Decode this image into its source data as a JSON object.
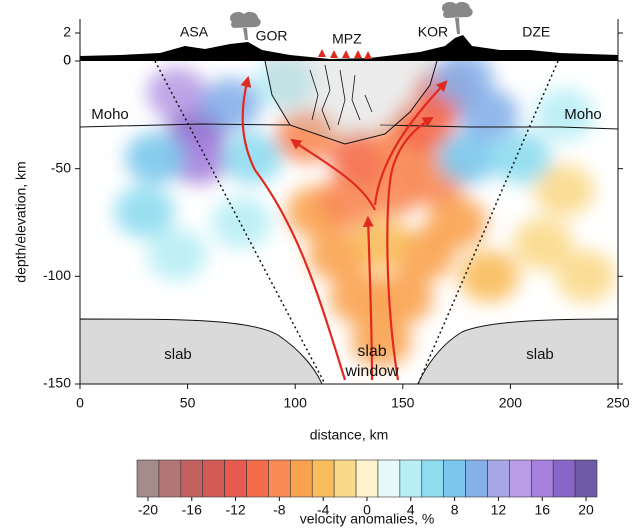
{
  "chart_data": {
    "type": "tomography",
    "xlabel": "distance, km",
    "ylabel": "depth/elevation, km",
    "xlim": [
      0,
      250
    ],
    "ylim": [
      -150,
      0
    ],
    "xticks": [
      0,
      50,
      100,
      150,
      200,
      250
    ],
    "yticks": [
      -150,
      -100,
      -50,
      0
    ],
    "elevation_lim": [
      0,
      3
    ],
    "elevation_ticks": [
      0,
      2
    ],
    "sites": [
      {
        "label": "ASA",
        "x": 53
      },
      {
        "label": "GOR",
        "x": 89
      },
      {
        "label": "MPZ",
        "x": 124
      },
      {
        "label": "KOR",
        "x": 164
      },
      {
        "label": "DZE",
        "x": 212
      }
    ],
    "labels": [
      "Moho",
      "Moho",
      "slab",
      "slab",
      "slab",
      "window"
    ],
    "anomalies": [
      {
        "x": 140,
        "y": -130,
        "value": -6
      },
      {
        "x": 130,
        "y": -110,
        "value": -6
      },
      {
        "x": 150,
        "y": -110,
        "value": -6
      },
      {
        "x": 120,
        "y": -90,
        "value": -6
      },
      {
        "x": 160,
        "y": -90,
        "value": -6
      },
      {
        "x": 140,
        "y": -85,
        "value": -4
      },
      {
        "x": 175,
        "y": -75,
        "value": -6
      },
      {
        "x": 110,
        "y": -70,
        "value": -6
      },
      {
        "x": 125,
        "y": -65,
        "value": -8
      },
      {
        "x": 145,
        "y": -60,
        "value": -8
      },
      {
        "x": 165,
        "y": -55,
        "value": -8
      },
      {
        "x": 130,
        "y": -45,
        "value": -10
      },
      {
        "x": 150,
        "y": -40,
        "value": -8
      },
      {
        "x": 170,
        "y": -15,
        "value": -12
      },
      {
        "x": 160,
        "y": -30,
        "value": -10
      },
      {
        "x": 105,
        "y": -35,
        "value": -8
      },
      {
        "x": 190,
        "y": -100,
        "value": -4
      },
      {
        "x": 215,
        "y": -85,
        "value": -2
      },
      {
        "x": 235,
        "y": -100,
        "value": -2
      },
      {
        "x": 225,
        "y": -60,
        "value": -2
      },
      {
        "x": 55,
        "y": -30,
        "value": 18
      },
      {
        "x": 55,
        "y": -45,
        "value": 16
      },
      {
        "x": 45,
        "y": -15,
        "value": 14
      },
      {
        "x": 70,
        "y": -20,
        "value": 10
      },
      {
        "x": 80,
        "y": -45,
        "value": 6
      },
      {
        "x": 95,
        "y": -10,
        "value": 4
      },
      {
        "x": 35,
        "y": -45,
        "value": 8
      },
      {
        "x": 30,
        "y": -70,
        "value": 6
      },
      {
        "x": 45,
        "y": -90,
        "value": 4
      },
      {
        "x": 75,
        "y": -75,
        "value": 4
      },
      {
        "x": 180,
        "y": -45,
        "value": 8
      },
      {
        "x": 190,
        "y": -25,
        "value": 10
      },
      {
        "x": 205,
        "y": -45,
        "value": 6
      },
      {
        "x": 178,
        "y": -8,
        "value": 10
      },
      {
        "x": 225,
        "y": -25,
        "value": 4
      }
    ],
    "colorbar": {
      "label": "velocity anomalies, %",
      "ticks": [
        -20,
        -16,
        -12,
        -8,
        -4,
        0,
        4,
        8,
        12,
        16,
        20
      ],
      "bins": [
        -21,
        -19,
        -17,
        -15,
        -13,
        -11,
        -9,
        -7,
        -5,
        -3,
        -1,
        1,
        3,
        5,
        7,
        9,
        11,
        13,
        15,
        17,
        19,
        21
      ],
      "colors": [
        "#a48c8a",
        "#b27676",
        "#c2615f",
        "#d45a57",
        "#e75a4f",
        "#f46c4a",
        "#f88a55",
        "#f9a24f",
        "#f9bd5b",
        "#fbd98b",
        "#fdf3cc",
        "#e6f8f8",
        "#b8eef5",
        "#8edcf0",
        "#7ac6ec",
        "#86b0ea",
        "#a6a8e6",
        "#b89ce6",
        "#a680dc",
        "#8866c8",
        "#6f5aa8"
      ]
    }
  }
}
